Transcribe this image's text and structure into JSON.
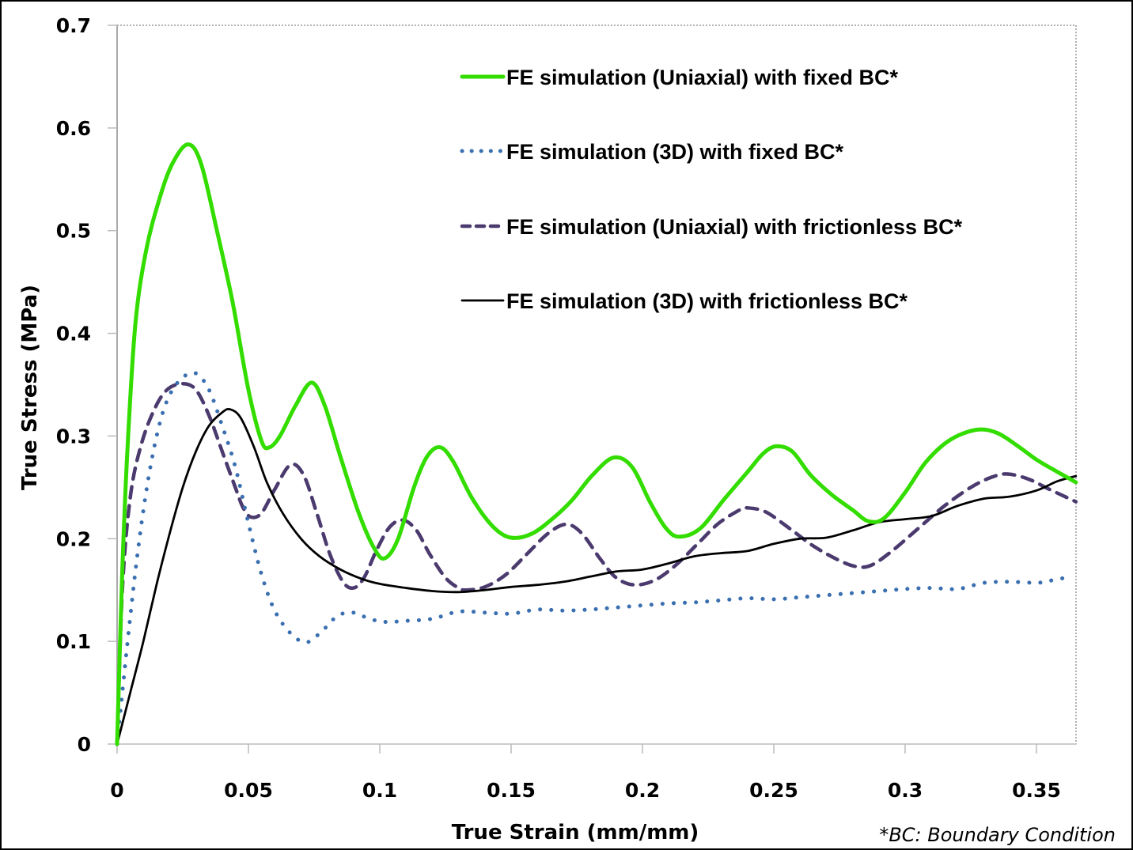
{
  "chart_data": {
    "type": "line",
    "title": "",
    "xlabel": "True Strain (mm/mm)",
    "ylabel": "True Stress (MPa)",
    "xlim": [
      0,
      0.365
    ],
    "ylim": [
      0,
      0.7
    ],
    "x_ticks": [
      0,
      0.05,
      0.1,
      0.15,
      0.2,
      0.25,
      0.3,
      0.35
    ],
    "x_tick_labels": [
      "0",
      "0.05",
      "0.1",
      "0.15",
      "0.2",
      "0.25",
      "0.3",
      "0.35"
    ],
    "y_ticks": [
      0,
      0.1,
      0.2,
      0.3,
      0.4,
      0.5,
      0.6,
      0.7
    ],
    "y_tick_labels": [
      "0",
      "0.1",
      "0.2",
      "0.3",
      "0.4",
      "0.5",
      "0.6",
      "0.7"
    ],
    "grid": false,
    "legend_position": "top-right",
    "footnote": "*BC: Boundary Condition",
    "series": [
      {
        "name": "FE simulation (Uniaxial) with fixed BC*",
        "color": "#33dd00",
        "style": "solid-thick",
        "x": [
          0,
          0.002,
          0.004,
          0.007,
          0.011,
          0.016,
          0.021,
          0.027,
          0.032,
          0.038,
          0.044,
          0.05,
          0.055,
          0.058,
          0.062,
          0.068,
          0.074,
          0.079,
          0.085,
          0.092,
          0.098,
          0.102,
          0.107,
          0.113,
          0.118,
          0.123,
          0.128,
          0.135,
          0.143,
          0.15,
          0.158,
          0.166,
          0.173,
          0.181,
          0.189,
          0.196,
          0.203,
          0.209,
          0.214,
          0.222,
          0.231,
          0.24,
          0.246,
          0.251,
          0.257,
          0.264,
          0.272,
          0.28,
          0.286,
          0.292,
          0.3,
          0.308,
          0.317,
          0.327,
          0.335,
          0.343,
          0.35,
          0.358,
          0.365
        ],
        "y": [
          0,
          0.17,
          0.29,
          0.41,
          0.48,
          0.53,
          0.565,
          0.584,
          0.565,
          0.5,
          0.43,
          0.345,
          0.295,
          0.289,
          0.3,
          0.33,
          0.352,
          0.33,
          0.28,
          0.225,
          0.19,
          0.181,
          0.2,
          0.25,
          0.28,
          0.289,
          0.275,
          0.24,
          0.212,
          0.201,
          0.205,
          0.22,
          0.237,
          0.262,
          0.279,
          0.27,
          0.235,
          0.21,
          0.202,
          0.21,
          0.238,
          0.265,
          0.283,
          0.29,
          0.285,
          0.262,
          0.243,
          0.228,
          0.217,
          0.22,
          0.245,
          0.275,
          0.296,
          0.306,
          0.303,
          0.29,
          0.277,
          0.265,
          0.255
        ]
      },
      {
        "name": "FE simulation (3D) with fixed BC*",
        "color": "#3a6fb0",
        "style": "dotted",
        "x": [
          0,
          0.004,
          0.008,
          0.012,
          0.016,
          0.02,
          0.025,
          0.03,
          0.035,
          0.04,
          0.045,
          0.05,
          0.055,
          0.06,
          0.066,
          0.072,
          0.078,
          0.084,
          0.09,
          0.096,
          0.102,
          0.11,
          0.12,
          0.13,
          0.14,
          0.15,
          0.16,
          0.17,
          0.18,
          0.19,
          0.2,
          0.21,
          0.22,
          0.23,
          0.24,
          0.25,
          0.26,
          0.27,
          0.28,
          0.29,
          0.3,
          0.31,
          0.32,
          0.33,
          0.34,
          0.35,
          0.355,
          0.363
        ],
        "y": [
          0,
          0.1,
          0.19,
          0.26,
          0.31,
          0.34,
          0.357,
          0.361,
          0.345,
          0.31,
          0.27,
          0.215,
          0.165,
          0.13,
          0.108,
          0.099,
          0.11,
          0.125,
          0.128,
          0.122,
          0.119,
          0.12,
          0.122,
          0.129,
          0.128,
          0.127,
          0.131,
          0.13,
          0.131,
          0.133,
          0.135,
          0.137,
          0.138,
          0.14,
          0.142,
          0.141,
          0.143,
          0.145,
          0.147,
          0.149,
          0.151,
          0.152,
          0.151,
          0.157,
          0.158,
          0.157,
          0.159,
          0.163
        ]
      },
      {
        "name": "FE simulation (Uniaxial) with frictionless BC*",
        "color": "#4b3a6e",
        "style": "dashed",
        "x": [
          0,
          0.002,
          0.005,
          0.009,
          0.014,
          0.019,
          0.025,
          0.03,
          0.035,
          0.04,
          0.045,
          0.048,
          0.051,
          0.055,
          0.06,
          0.066,
          0.071,
          0.076,
          0.081,
          0.086,
          0.09,
          0.094,
          0.099,
          0.104,
          0.109,
          0.114,
          0.119,
          0.125,
          0.13,
          0.133,
          0.14,
          0.148,
          0.156,
          0.164,
          0.171,
          0.177,
          0.184,
          0.19,
          0.197,
          0.205,
          0.213,
          0.221,
          0.229,
          0.237,
          0.24,
          0.247,
          0.256,
          0.265,
          0.274,
          0.281,
          0.287,
          0.295,
          0.305,
          0.315,
          0.325,
          0.333,
          0.339,
          0.347,
          0.355,
          0.365
        ],
        "y": [
          0,
          0.15,
          0.24,
          0.29,
          0.325,
          0.345,
          0.351,
          0.345,
          0.32,
          0.285,
          0.25,
          0.23,
          0.221,
          0.225,
          0.248,
          0.272,
          0.262,
          0.225,
          0.185,
          0.158,
          0.152,
          0.162,
          0.19,
          0.212,
          0.218,
          0.208,
          0.185,
          0.162,
          0.152,
          0.15,
          0.153,
          0.165,
          0.185,
          0.205,
          0.214,
          0.205,
          0.18,
          0.162,
          0.155,
          0.16,
          0.175,
          0.195,
          0.215,
          0.228,
          0.23,
          0.226,
          0.21,
          0.193,
          0.18,
          0.173,
          0.174,
          0.188,
          0.21,
          0.232,
          0.25,
          0.26,
          0.263,
          0.258,
          0.248,
          0.236
        ]
      },
      {
        "name": "FE simulation (3D) with frictionless BC*",
        "color": "#000000",
        "style": "solid-thin",
        "x": [
          0,
          0.005,
          0.01,
          0.015,
          0.02,
          0.025,
          0.03,
          0.035,
          0.04,
          0.043,
          0.047,
          0.052,
          0.057,
          0.063,
          0.07,
          0.077,
          0.085,
          0.093,
          0.1,
          0.11,
          0.12,
          0.13,
          0.14,
          0.15,
          0.16,
          0.17,
          0.18,
          0.19,
          0.2,
          0.21,
          0.22,
          0.23,
          0.24,
          0.25,
          0.26,
          0.27,
          0.28,
          0.29,
          0.3,
          0.31,
          0.32,
          0.33,
          0.34,
          0.35,
          0.358,
          0.365
        ],
        "y": [
          0,
          0.05,
          0.1,
          0.155,
          0.205,
          0.25,
          0.285,
          0.31,
          0.323,
          0.326,
          0.318,
          0.29,
          0.255,
          0.225,
          0.2,
          0.183,
          0.17,
          0.161,
          0.156,
          0.152,
          0.149,
          0.148,
          0.15,
          0.153,
          0.155,
          0.158,
          0.163,
          0.168,
          0.17,
          0.176,
          0.183,
          0.186,
          0.188,
          0.195,
          0.2,
          0.201,
          0.208,
          0.216,
          0.219,
          0.222,
          0.232,
          0.239,
          0.241,
          0.247,
          0.256,
          0.261
        ]
      }
    ]
  }
}
